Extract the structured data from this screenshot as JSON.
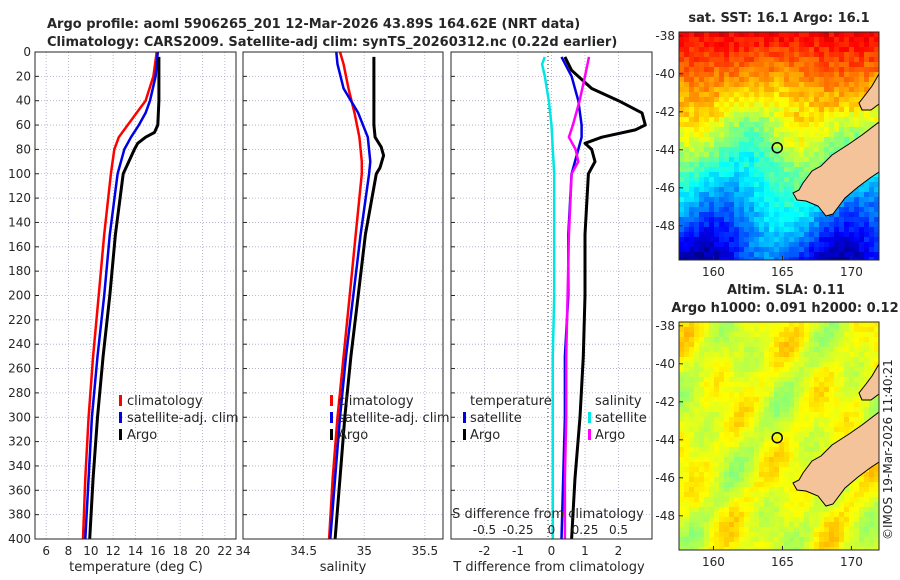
{
  "titles": {
    "line1": "Argo profile: aoml 5906265_201 12-Mar-2026 43.89S 164.62E (NRT data)",
    "line2": "Climatology: CARS2009. Satellite-adj clim: synTS_20260312.nc (0.22d earlier)"
  },
  "colors": {
    "climatology": "#ff0000",
    "satellite": "#0000e6",
    "argo": "#000000",
    "sat_salinity": "#00e6e6",
    "argo_salinity": "#ff00ff",
    "grid": "#a8a8c8",
    "land": "#f5c39a"
  },
  "chart_data": [
    {
      "type": "line",
      "title": "",
      "xlabel": "temperature (deg C)",
      "ylabel": "",
      "xlim": [
        5,
        23
      ],
      "ylim": [
        400,
        0
      ],
      "xticks": [
        "6",
        "8",
        "10",
        "12",
        "14",
        "16",
        "18",
        "20",
        "22"
      ],
      "yticks": [
        "0",
        "20",
        "40",
        "60",
        "80",
        "100",
        "120",
        "140",
        "160",
        "180",
        "200",
        "220",
        "240",
        "260",
        "280",
        "300",
        "320",
        "340",
        "360",
        "380",
        "400"
      ],
      "legend": [
        "climatology",
        "satellite-adj. clim",
        "Argo"
      ],
      "series": [
        {
          "name": "climatology",
          "depth": [
            0,
            20,
            40,
            50,
            60,
            70,
            80,
            100,
            150,
            200,
            250,
            300,
            350,
            400
          ],
          "values": [
            15.9,
            15.6,
            14.9,
            14.1,
            13.3,
            12.5,
            12.1,
            11.8,
            11.2,
            10.7,
            10.2,
            9.8,
            9.5,
            9.3
          ]
        },
        {
          "name": "satellite-adj. clim",
          "depth": [
            0,
            20,
            40,
            50,
            60,
            70,
            80,
            100,
            150,
            200,
            250,
            300,
            350,
            400
          ],
          "values": [
            16.0,
            15.8,
            15.3,
            14.9,
            14.3,
            13.6,
            13.0,
            12.4,
            11.7,
            11.2,
            10.6,
            10.1,
            9.8,
            9.5
          ]
        },
        {
          "name": "Argo",
          "depth": [
            4,
            20,
            40,
            60,
            66,
            70,
            75,
            80,
            90,
            100,
            150,
            200,
            250,
            300,
            350,
            400
          ],
          "values": [
            16.1,
            16.1,
            16.1,
            16.0,
            15.7,
            14.9,
            14.2,
            13.9,
            13.4,
            12.9,
            12.2,
            11.7,
            11.1,
            10.6,
            10.2,
            9.9
          ]
        }
      ]
    },
    {
      "type": "line",
      "xlabel": "salinity",
      "xlim": [
        34,
        35.65
      ],
      "ylim": [
        400,
        0
      ],
      "xticks": [
        "34",
        "34.5",
        "35",
        "35.5"
      ],
      "legend": [
        "climatology",
        "satellite-adj. clim",
        "Argo"
      ],
      "series": [
        {
          "name": "climatology",
          "depth": [
            0,
            10,
            30,
            50,
            70,
            90,
            100,
            150,
            200,
            250,
            300,
            350,
            400
          ],
          "values": [
            34.8,
            34.83,
            34.87,
            34.92,
            34.96,
            34.98,
            34.98,
            34.93,
            34.88,
            34.83,
            34.78,
            34.74,
            34.71
          ]
        },
        {
          "name": "satellite-adj. clim",
          "depth": [
            0,
            10,
            30,
            50,
            70,
            90,
            100,
            150,
            200,
            250,
            300,
            350,
            400
          ],
          "values": [
            34.77,
            34.78,
            34.83,
            34.95,
            35.03,
            35.05,
            35.04,
            34.97,
            34.91,
            34.85,
            34.8,
            34.76,
            34.72
          ]
        },
        {
          "name": "Argo",
          "depth": [
            4,
            20,
            40,
            60,
            70,
            78,
            85,
            95,
            100,
            150,
            200,
            250,
            300,
            350,
            400
          ],
          "values": [
            35.08,
            35.08,
            35.08,
            35.08,
            35.09,
            35.14,
            35.16,
            35.13,
            35.1,
            35.01,
            34.95,
            34.89,
            34.84,
            34.8,
            34.76
          ]
        }
      ]
    },
    {
      "type": "line",
      "xlabel": "T difference from climatology",
      "xlabel_top": "S difference from climatology",
      "xlim": [
        -3,
        3
      ],
      "ylim": [
        400,
        0
      ],
      "xticks": [
        "-2",
        "-1",
        "0",
        "1",
        "2"
      ],
      "xticks_S": [
        "-0.5",
        "-0.25",
        "0",
        "0.25",
        "0.5"
      ],
      "legend_T": {
        "title": "temperature",
        "items": [
          "satellite",
          "Argo"
        ]
      },
      "legend_S": {
        "title": "salinity",
        "items": [
          "satellite",
          "Argo"
        ]
      },
      "series": [
        {
          "name": "temperature satellite",
          "depth": [
            4,
            20,
            40,
            60,
            70,
            80,
            100,
            150,
            200,
            250,
            300,
            350,
            400
          ],
          "values": [
            0.3,
            0.6,
            0.8,
            0.9,
            0.9,
            0.8,
            0.6,
            0.5,
            0.5,
            0.4,
            0.4,
            0.35,
            0.3
          ]
        },
        {
          "name": "temperature Argo",
          "depth": [
            4,
            15,
            30,
            40,
            50,
            60,
            64,
            70,
            75,
            80,
            90,
            100,
            150,
            200,
            250,
            300,
            350,
            400
          ],
          "values": [
            0.4,
            0.6,
            1.2,
            2.0,
            2.7,
            2.8,
            2.5,
            1.5,
            1.0,
            1.2,
            1.3,
            1.1,
            1.0,
            1.0,
            0.95,
            0.85,
            0.7,
            0.6
          ]
        },
        {
          "name": "salinity satellite",
          "depth": [
            4,
            10,
            20,
            40,
            60,
            80,
            100,
            150,
            200,
            250,
            300,
            350,
            400
          ],
          "values": [
            -0.05,
            -0.07,
            -0.05,
            -0.02,
            0,
            0.01,
            0.02,
            0.02,
            0.02,
            0.01,
            0.01,
            0.01,
            0.01
          ]
        },
        {
          "name": "salinity Argo",
          "depth": [
            4,
            20,
            40,
            60,
            70,
            80,
            90,
            100,
            150,
            200,
            250,
            300,
            350,
            400
          ],
          "values": [
            0.28,
            0.25,
            0.21,
            0.16,
            0.13,
            0.18,
            0.2,
            0.15,
            0.13,
            0.12,
            0.11,
            0.11,
            0.1,
            0.1
          ]
        }
      ]
    },
    {
      "type": "heatmap",
      "title": "sat. SST: 16.1 Argo: 16.1",
      "xlim": [
        157.5,
        172
      ],
      "ylim": [
        -49.8,
        -37.8
      ],
      "xticks": [
        "160",
        "165",
        "170"
      ],
      "yticks": [
        "-38",
        "-40",
        "-42",
        "-44",
        "-46",
        "-48"
      ],
      "marker": {
        "lon": 164.62,
        "lat": -43.89
      }
    },
    {
      "type": "heatmap",
      "title": "Altim. SLA: 0.11",
      "title2": "Argo h1000: 0.091 h2000: 0.12",
      "xlim": [
        157.5,
        172
      ],
      "ylim": [
        -49.8,
        -37.8
      ],
      "xticks": [
        "160",
        "165",
        "170"
      ],
      "yticks": [
        "-38",
        "-40",
        "-42",
        "-44",
        "-46",
        "-48"
      ],
      "marker": {
        "lon": 164.62,
        "lat": -43.89
      }
    }
  ],
  "stamp": "©IMOS 19-Mar-2026 11:40:21"
}
